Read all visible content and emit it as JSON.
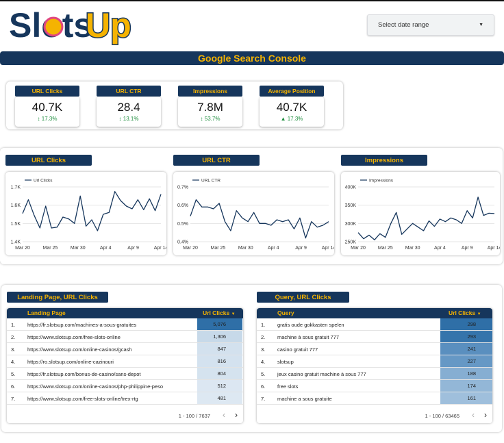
{
  "logo": {
    "text_a": "Slots",
    "text_b": "Up"
  },
  "date_picker": {
    "label": "Select date range",
    "caret": "▼"
  },
  "banner": {
    "title": "Google Search Console"
  },
  "kpis": [
    {
      "label": "URL Clicks",
      "value": "40.7K",
      "delta": "↕ 17.3%"
    },
    {
      "label": "URL CTR",
      "value": "28.4",
      "delta": "↕ 13.1%"
    },
    {
      "label": "Impressions",
      "value": "7.8M",
      "delta": "↕ 53.7%"
    },
    {
      "label": "Average Position",
      "value": "40.7K",
      "delta": "▲ 17.3%"
    }
  ],
  "chart_data": [
    {
      "type": "line",
      "title": "URL Clicks",
      "legend": "Url Clicks",
      "legend_position": "top-left",
      "x_ticks": [
        "Mar 20",
        "Mar 25",
        "Mar 30",
        "Apr 4",
        "Apr 9",
        "Apr 14"
      ],
      "y_ticks": [
        "1.7K",
        "1.6K",
        "1.5K",
        "1.4K"
      ],
      "ylim": [
        1400,
        1700
      ],
      "color": "#16365c",
      "values": [
        1555,
        1630,
        1545,
        1475,
        1595,
        1475,
        1480,
        1535,
        1525,
        1500,
        1650,
        1485,
        1520,
        1460,
        1550,
        1560,
        1675,
        1625,
        1595,
        1580,
        1630,
        1575,
        1635,
        1570,
        1660
      ]
    },
    {
      "type": "line",
      "title": "URL CTR",
      "legend": "URL CTR",
      "legend_position": "top-left",
      "x_ticks": [
        "Mar 20",
        "Mar 25",
        "Mar 30",
        "Apr 4",
        "Apr 9",
        "Apr 14"
      ],
      "y_ticks": [
        "0.7%",
        "0.6%",
        "0.5%",
        "0.4%"
      ],
      "ylim": [
        0.4,
        0.7
      ],
      "color": "#16365c",
      "values": [
        0.54,
        0.63,
        0.59,
        0.59,
        0.58,
        0.61,
        0.51,
        0.46,
        0.57,
        0.53,
        0.51,
        0.56,
        0.5,
        0.5,
        0.49,
        0.52,
        0.51,
        0.52,
        0.47,
        0.53,
        0.42,
        0.51,
        0.48,
        0.49,
        0.51
      ]
    },
    {
      "type": "line",
      "title": "Impressions",
      "legend": "Impressions",
      "legend_position": "top-left",
      "x_ticks": [
        "Mar 20",
        "Mar 25",
        "Mar 30",
        "Apr 4",
        "Apr 9",
        "Apr 14"
      ],
      "y_ticks": [
        "400K",
        "350K",
        "300K",
        "250K"
      ],
      "ylim": [
        250000,
        400000
      ],
      "color": "#16365c",
      "values": [
        275000,
        258000,
        268000,
        255000,
        272000,
        262000,
        300000,
        330000,
        270000,
        285000,
        300000,
        290000,
        280000,
        307000,
        292000,
        312000,
        305000,
        315000,
        310000,
        300000,
        335000,
        315000,
        372000,
        322000,
        328000,
        327000
      ]
    }
  ],
  "tables": [
    {
      "title": "Landing Page, URL Clicks",
      "col_1": "Landing Page",
      "col_2": "Url Clicks",
      "sort_icon": "▼",
      "rows": [
        {
          "n": "1.",
          "label": "https://fr.slotsup.com/machines-a-sous-gratuites",
          "value": "5,076",
          "shade": "#2f6fa7"
        },
        {
          "n": "2.",
          "label": "https://www.slotsup.com/free-slots-online",
          "value": "1,306",
          "shade": "#c7d9e9"
        },
        {
          "n": "3.",
          "label": "https://www.slotsup.com/online-casinos/gcash",
          "value": "847",
          "shade": "#d3e1ee"
        },
        {
          "n": "4.",
          "label": "https://ro.slotsup.com/online-cazinouri",
          "value": "816",
          "shade": "#d4e2ef"
        },
        {
          "n": "5.",
          "label": "https://fr.slotsup.com/bonus-de-casino/sans-depot",
          "value": "804",
          "shade": "#d5e3ef"
        },
        {
          "n": "6.",
          "label": "https://www.slotsup.com/online-casinos/php-philippine-peso",
          "value": "512",
          "shade": "#dce7f2"
        },
        {
          "n": "7.",
          "label": "https://www.slotsup.com/free-slots-online/trex-rtg",
          "value": "481",
          "shade": "#dde8f2"
        }
      ],
      "footer": "1 - 100 / 7637"
    },
    {
      "title": "Query, URL Clicks",
      "col_1": "Query",
      "col_2": "Url Clicks",
      "sort_icon": "▼",
      "rows": [
        {
          "n": "1.",
          "label": "gratis oude gokkasten spelen",
          "value": "298",
          "shade": "#2f6fa7"
        },
        {
          "n": "2.",
          "label": "machine à sous gratuit 777",
          "value": "293",
          "shade": "#3574ab"
        },
        {
          "n": "3.",
          "label": "casino gratuit 777",
          "value": "241",
          "shade": "#5a8fbf"
        },
        {
          "n": "4.",
          "label": "slotsup",
          "value": "227",
          "shade": "#6698c5"
        },
        {
          "n": "5.",
          "label": "jeux casino gratuit machine à sous 777",
          "value": "188",
          "shade": "#86aed2"
        },
        {
          "n": "6.",
          "label": "free slots",
          "value": "174",
          "shade": "#93b7d7"
        },
        {
          "n": "7.",
          "label": "machine a sous gratuite",
          "value": "161",
          "shade": "#9fbfdc"
        }
      ],
      "footer": "1 - 100 / 63465"
    }
  ],
  "pager": {
    "prev": "‹",
    "next": "›"
  }
}
